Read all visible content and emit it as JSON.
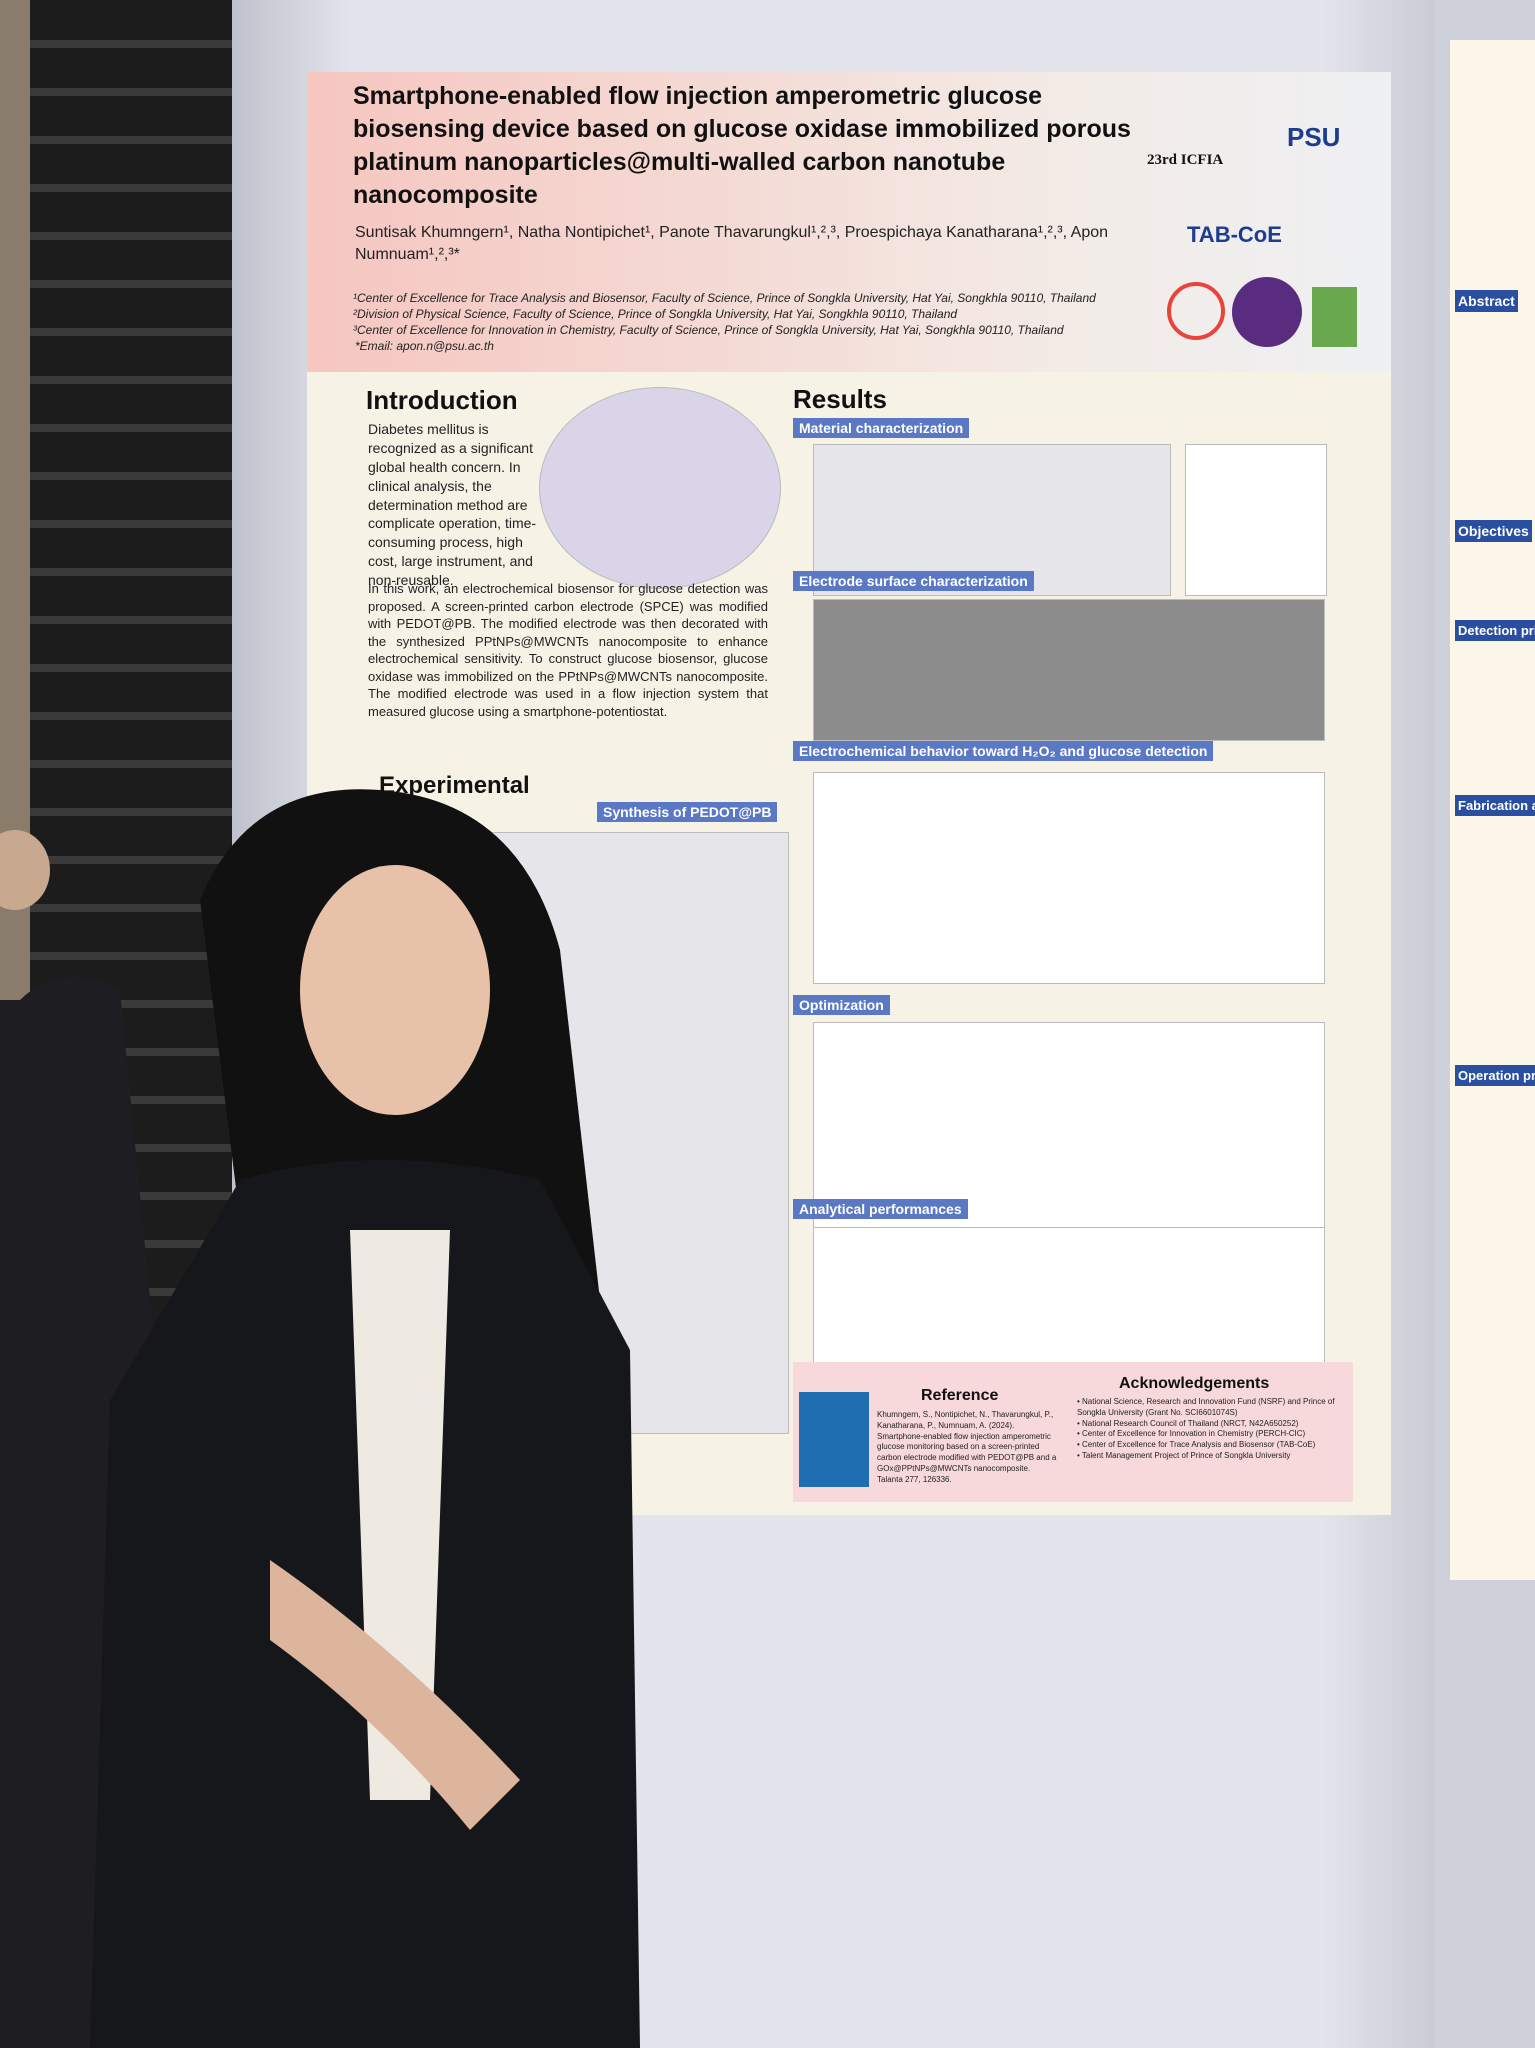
{
  "poster": {
    "title": "Smartphone-enabled flow injection amperometric glucose biosensing device based on glucose oxidase immobilized porous platinum nanoparticles@multi-walled carbon nanotube nanocomposite",
    "authors": "Suntisak Khumngern¹, Natha Nontipichet¹, Panote Thavarungkul¹,²,³, Proespichaya Kanatharana¹,²,³, Apon Numnuam¹,²,³*",
    "affiliations": [
      "¹Center of Excellence for Trace Analysis and Biosensor, Faculty of Science, Prince of Songkla University, Hat Yai, Songkhla 90110, Thailand",
      "²Division of Physical Science, Faculty of Science, Prince of Songkla University, Hat Yai, Songkhla 90110, Thailand",
      "³Center of Excellence for Innovation in Chemistry, Faculty of Science, Prince of Songkla University, Hat Yai, Songkhla 90110, Thailand"
    ],
    "email": "*Email: apon.n@psu.ac.th",
    "logos": [
      "23rd ICFIA",
      "PSU",
      "TAB-CoE"
    ],
    "introduction": {
      "heading": "Introduction",
      "text1": "Diabetes mellitus is recognized as a significant global health concern. In clinical analysis, the determination method are complicate operation, time-consuming process, high cost, large instrument, and non-reusable.",
      "text2": "In this work, an electrochemical biosensor for glucose detection was proposed. A screen-printed carbon electrode (SPCE) was modified with PEDOT@PB. The modified electrode was then decorated with the synthesized PPtNPs@MWCNTs nanocomposite to enhance electrochemical sensitivity. To construct glucose biosensor, glucose oxidase was immobilized on the PPtNPs@MWCNTs nanocomposite. The modified electrode was used in a flow injection system that measured glucose using a smartphone-potentiostat."
    },
    "experimental": {
      "heading": "Experimental",
      "subheading": "Synthesis of PEDOT@PB"
    },
    "results": {
      "heading": "Results",
      "sections": [
        "Material characterization",
        "Electrode surface characterization",
        "Electrochemical behavior toward H₂O₂ and glucose detection",
        "Optimization",
        "Analytical performances"
      ]
    },
    "reference": {
      "heading": "Reference",
      "text": "Khumngern, S., Nontipichet, N., Thavarungkul, P., Kanatharana, P., Numnuam, A. (2024). Smartphone-enabled flow injection amperometric glucose monitoring based on a screen-printed carbon electrode modified with PEDOT@PB and a GOx@PPtNPs@MWCNTs nanocomposite. Talanta 277, 126336."
    },
    "acknowledgements": {
      "heading": "Acknowledgements",
      "items": [
        "National Science, Research and Innovation Fund (NSRF) and Prince of Songkla University (Grant No. SCI6601074S)",
        "National Research Council of Thailand (NRCT, N42A650252)",
        "Center of Excellence for Innovation in Chemistry (PERCH-CIC)",
        "Center of Excellence for Trace Analysis and Biosensor (TAB-CoE)",
        "Talent Management Project of Prince of Songkla University"
      ]
    },
    "side_poster": {
      "headings": [
        "Abstract",
        "Objectives",
        "Detection principle",
        "Fabrication and",
        "Operation procedure"
      ]
    }
  }
}
